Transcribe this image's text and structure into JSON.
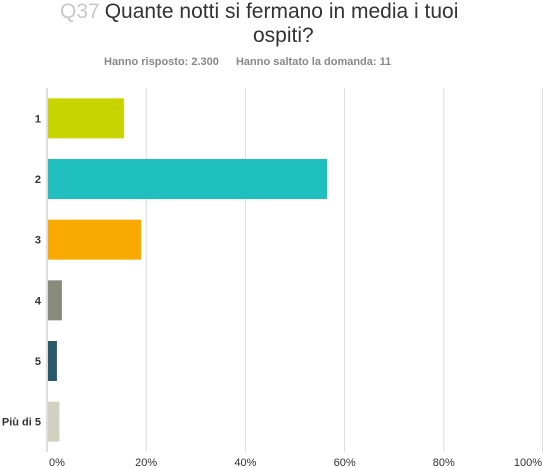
{
  "question": {
    "number": "Q37",
    "title_line1": "Quante notti si fermano in media i tuoi",
    "title_line2": "ospiti?",
    "answered": "Hanno risposto: 2.300",
    "skipped": "Hanno saltato la domanda: 11"
  },
  "chart_data": {
    "type": "bar",
    "orientation": "horizontal",
    "categories": [
      "1",
      "2",
      "3",
      "4",
      "5",
      "Più di 5"
    ],
    "values": [
      15.5,
      56.5,
      19,
      3,
      2,
      2.5
    ],
    "colors": [
      "#c8d400",
      "#1fbfbf",
      "#f9aa00",
      "#888a7a",
      "#2a5a6a",
      "#d2d0c0"
    ],
    "xlim": [
      0,
      100
    ],
    "x_ticks": [
      "0%",
      "20%",
      "40%",
      "60%",
      "80%",
      "100%"
    ],
    "grid": true
  }
}
